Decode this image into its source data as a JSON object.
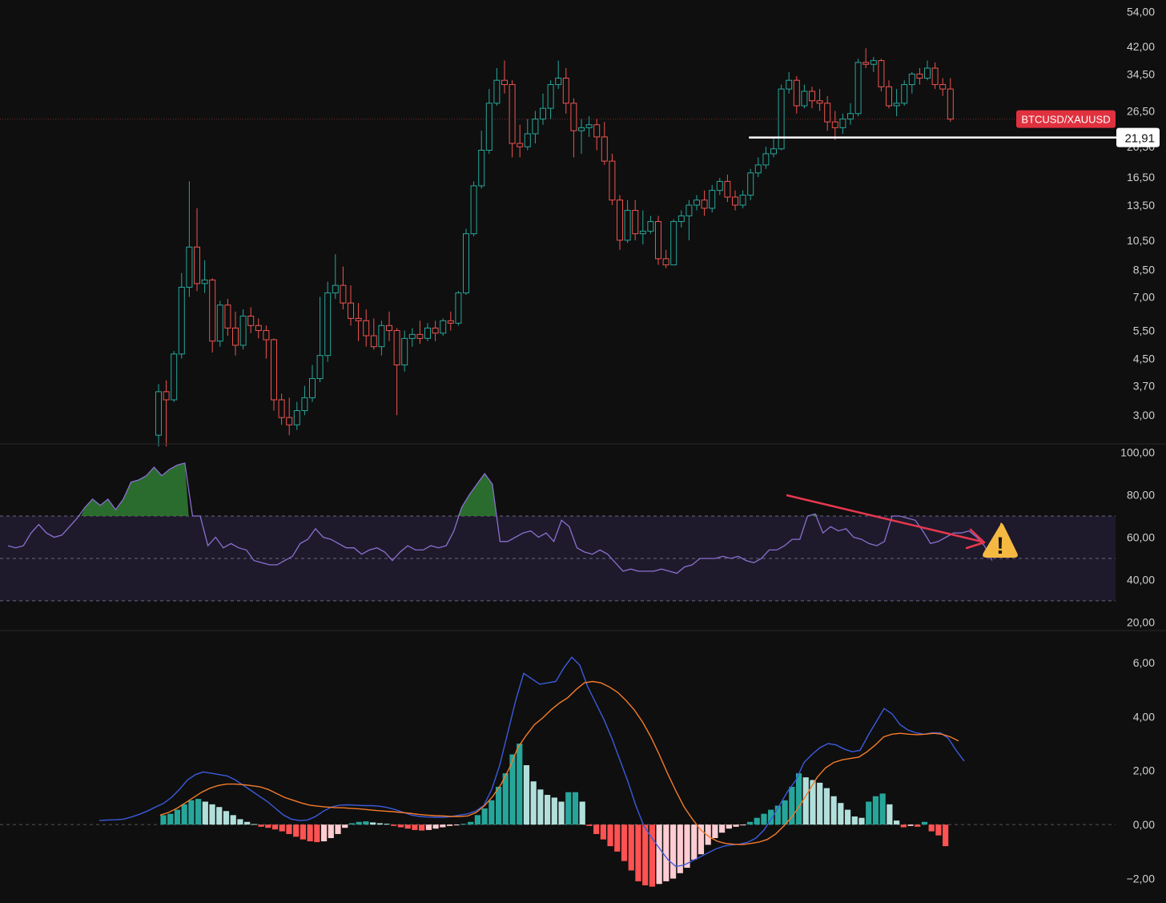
{
  "colors": {
    "background": "#0f0f0f",
    "up": "#26a69a",
    "down": "#ef5350",
    "rsi_line": "#8c6fd1",
    "rsi_band": "#1e1a2b",
    "rsi_ob_fill": "#2f7d32",
    "macd_line": "#3b5bdb",
    "signal_line": "#f57c2a",
    "hist_up_strong": "#26a69a",
    "hist_up_weak": "#b2dfdb",
    "hist_down_strong": "#ff5252",
    "hist_down_weak": "#ffcdd2",
    "price_label_bg": "#e0313f",
    "axis_text": "#cfcfcf",
    "arrow": "#e8384f",
    "warning": "#f5b942"
  },
  "chart_data": [
    {
      "type": "candlestick",
      "symbol": "BTCUSD/XAUUSD",
      "scale": "log",
      "y_ticks": [
        3.0,
        3.7,
        4.5,
        5.5,
        7.0,
        8.5,
        10.5,
        13.5,
        16.5,
        26.5,
        34.5,
        42.0,
        54.0
      ],
      "y_tick_labels": [
        "3,00",
        "3,70",
        "4,50",
        "5,50",
        "7,00",
        "8,50",
        "10,50",
        "13,50",
        "16,50",
        "26,50",
        "34,50",
        "42,00",
        "54,00"
      ],
      "ylim": [
        2.5,
        56
      ],
      "partially_hidden_tick_label": "20,50",
      "last_price_label": "BTCUSD/XAUUSD",
      "horizontal_line": {
        "value": 21.91,
        "label": "21,91",
        "start_bar": 77
      },
      "current_price": 25.0,
      "candles": [
        [
          2.6,
          3.55,
          3.75,
          2.4
        ],
        [
          3.55,
          3.35,
          3.85,
          2.4
        ],
        [
          3.35,
          4.65,
          4.75,
          3.3
        ],
        [
          4.65,
          7.5,
          8.3,
          4.5
        ],
        [
          7.5,
          10.0,
          16.0,
          7.0
        ],
        [
          10.0,
          7.7,
          13.2,
          7.3
        ],
        [
          7.7,
          7.9,
          9.1,
          7.2
        ],
        [
          7.9,
          5.1,
          8.0,
          4.7
        ],
        [
          5.1,
          6.6,
          6.8,
          4.9
        ],
        [
          6.6,
          5.6,
          6.9,
          5.3
        ],
        [
          5.6,
          4.95,
          6.3,
          4.6
        ],
        [
          4.95,
          6.1,
          6.4,
          4.8
        ],
        [
          6.1,
          5.7,
          6.5,
          5.4
        ],
        [
          5.7,
          5.5,
          6.0,
          5.2
        ],
        [
          5.5,
          5.15,
          5.7,
          4.5
        ],
        [
          5.15,
          3.35,
          5.2,
          3.1
        ],
        [
          3.35,
          2.95,
          3.5,
          2.8
        ],
        [
          2.95,
          2.8,
          3.4,
          2.6
        ],
        [
          2.8,
          3.1,
          3.3,
          2.7
        ],
        [
          3.1,
          3.4,
          3.7,
          3.0
        ],
        [
          3.4,
          3.9,
          4.3,
          3.3
        ],
        [
          3.9,
          4.6,
          7.0,
          3.8
        ],
        [
          4.6,
          7.2,
          7.8,
          4.4
        ],
        [
          7.2,
          7.6,
          9.5,
          6.9
        ],
        [
          7.6,
          6.7,
          8.7,
          6.4
        ],
        [
          6.7,
          6.0,
          7.6,
          5.7
        ],
        [
          6.0,
          5.9,
          6.7,
          5.1
        ],
        [
          5.9,
          5.3,
          6.4,
          4.9
        ],
        [
          5.3,
          4.9,
          6.0,
          4.8
        ],
        [
          4.9,
          5.7,
          5.9,
          4.6
        ],
        [
          5.7,
          5.5,
          6.3,
          5.1
        ],
        [
          5.5,
          4.3,
          5.6,
          3.0
        ],
        [
          4.3,
          5.2,
          5.5,
          4.1
        ],
        [
          5.2,
          5.35,
          5.6,
          4.9
        ],
        [
          5.35,
          5.2,
          5.9,
          5.0
        ],
        [
          5.2,
          5.6,
          5.8,
          5.1
        ],
        [
          5.6,
          5.4,
          5.9,
          5.1
        ],
        [
          5.4,
          5.9,
          6.0,
          5.3
        ],
        [
          5.9,
          5.8,
          6.3,
          5.5
        ],
        [
          5.8,
          7.2,
          7.3,
          5.7
        ],
        [
          7.2,
          11.0,
          11.4,
          7.1
        ],
        [
          11.0,
          15.5,
          16.0,
          10.8
        ],
        [
          15.5,
          20.0,
          23.0,
          15.2
        ],
        [
          20.0,
          28.0,
          31.0,
          19.5
        ],
        [
          28.0,
          33.0,
          36.0,
          27.5
        ],
        [
          33.0,
          32.0,
          38.0,
          30.0
        ],
        [
          32.0,
          21.0,
          33.0,
          19.0
        ],
        [
          21.0,
          20.5,
          24.0,
          19.0
        ],
        [
          20.5,
          22.5,
          25.0,
          20.0
        ],
        [
          22.5,
          25.0,
          26.5,
          21.0
        ],
        [
          25.0,
          27.0,
          30.0,
          24.0
        ],
        [
          27.0,
          32.0,
          33.0,
          25.0
        ],
        [
          32.0,
          33.5,
          38.0,
          31.0
        ],
        [
          33.5,
          28.0,
          36.0,
          26.0
        ],
        [
          28.0,
          23.0,
          29.0,
          19.0
        ],
        [
          23.0,
          23.5,
          25.0,
          19.5
        ],
        [
          23.5,
          24.0,
          25.5,
          22.0
        ],
        [
          24.0,
          22.0,
          25.0,
          20.0
        ],
        [
          22.0,
          18.5,
          24.5,
          18.0
        ],
        [
          18.5,
          14.0,
          19.5,
          13.5
        ],
        [
          14.0,
          10.5,
          14.5,
          9.8
        ],
        [
          10.5,
          13.0,
          14.0,
          10.3
        ],
        [
          13.0,
          11.0,
          14.0,
          10.5
        ],
        [
          11.0,
          11.2,
          13.0,
          10.2
        ],
        [
          11.2,
          12.0,
          12.5,
          11.0
        ],
        [
          12.0,
          9.2,
          12.5,
          8.8
        ],
        [
          9.2,
          8.8,
          9.8,
          8.6
        ],
        [
          8.8,
          12.0,
          12.2,
          8.8
        ],
        [
          12.0,
          12.5,
          13.0,
          11.5
        ],
        [
          12.5,
          13.5,
          14.0,
          10.5
        ],
        [
          13.5,
          14.0,
          14.5,
          13.0
        ],
        [
          14.0,
          13.2,
          15.0,
          12.5
        ],
        [
          13.2,
          15.0,
          15.6,
          12.8
        ],
        [
          15.0,
          16.0,
          16.4,
          14.5
        ],
        [
          16.0,
          14.3,
          16.8,
          13.8
        ],
        [
          14.3,
          13.5,
          15.0,
          13.0
        ],
        [
          13.5,
          14.5,
          15.0,
          13.2
        ],
        [
          14.5,
          17.0,
          17.5,
          14.0
        ],
        [
          17.0,
          18.0,
          19.0,
          16.5
        ],
        [
          18.0,
          19.5,
          20.5,
          17.5
        ],
        [
          19.5,
          20.2,
          22.0,
          19.0
        ],
        [
          20.2,
          31.0,
          32.0,
          20.0
        ],
        [
          31.0,
          33.0,
          35.0,
          30.0
        ],
        [
          33.0,
          27.5,
          34.0,
          26.0
        ],
        [
          27.5,
          30.5,
          32.0,
          27.0
        ],
        [
          30.5,
          28.5,
          31.5,
          27.0
        ],
        [
          28.5,
          28.0,
          31.0,
          26.5
        ],
        [
          28.0,
          24.5,
          29.5,
          23.0
        ],
        [
          24.5,
          23.5,
          26.5,
          21.5
        ],
        [
          23.5,
          25.0,
          26.0,
          22.5
        ],
        [
          25.0,
          26.0,
          28.0,
          24.0
        ],
        [
          26.0,
          37.5,
          38.5,
          25.5
        ],
        [
          37.5,
          37.0,
          41.5,
          36.0
        ],
        [
          37.0,
          38.0,
          39.0,
          35.0
        ],
        [
          38.0,
          31.5,
          38.5,
          30.5
        ],
        [
          31.5,
          27.5,
          33.0,
          27.0
        ],
        [
          27.5,
          28.0,
          31.0,
          25.5
        ],
        [
          28.0,
          32.0,
          33.0,
          27.5
        ],
        [
          32.0,
          34.5,
          35.0,
          30.0
        ],
        [
          34.5,
          33.5,
          36.0,
          32.0
        ],
        [
          33.5,
          36.0,
          38.0,
          33.0
        ],
        [
          36.0,
          32.0,
          37.5,
          31.0
        ],
        [
          32.0,
          31.0,
          33.5,
          29.5
        ],
        [
          31.0,
          25.0,
          33.5,
          24.5
        ]
      ]
    },
    {
      "type": "line",
      "indicator": "RSI",
      "y_ticks": [
        20,
        40,
        60,
        80,
        100
      ],
      "y_tick_labels": [
        "20,00",
        "40,00",
        "60,00",
        "80,00",
        "100,00"
      ],
      "ylim": [
        17.5,
        102.5
      ],
      "band": [
        30,
        70
      ],
      "midline": 50,
      "warning_glyph": "!",
      "values": [
        56,
        55,
        56,
        62,
        66,
        62,
        60,
        61,
        65,
        69,
        74,
        78,
        75,
        78,
        73,
        78,
        86,
        87,
        89,
        93,
        89,
        92,
        94,
        95,
        70,
        70,
        56,
        60,
        55,
        57,
        55,
        54,
        49,
        48,
        47,
        47,
        49,
        51,
        57,
        59,
        64,
        60,
        59,
        57,
        55,
        55,
        52,
        54,
        55,
        53,
        49,
        53,
        56,
        54,
        54,
        56,
        55,
        56,
        63,
        74,
        80,
        85,
        90,
        85,
        58,
        58,
        60,
        62,
        63,
        60,
        62,
        58,
        68,
        65,
        55,
        53,
        52,
        54,
        52,
        48,
        44,
        45,
        44,
        44,
        44,
        45,
        44,
        43,
        46,
        47,
        50,
        50,
        50,
        51,
        50,
        51,
        49,
        48,
        50,
        54,
        54,
        56,
        59,
        59,
        70,
        71,
        62,
        65,
        63,
        64,
        60,
        59,
        57,
        56,
        58,
        70,
        70,
        69,
        68,
        63,
        57,
        58,
        60,
        62,
        62,
        63,
        60,
        56,
        49
      ]
    },
    {
      "type": "line",
      "indicator": "MACD",
      "y_ticks": [
        -2,
        0,
        2,
        4,
        6
      ],
      "y_tick_labels": [
        "−2,00",
        "0,00",
        "2,00",
        "4,00",
        "6,00"
      ],
      "ylim": [
        -2.4,
        6.8
      ],
      "zero_line": 0,
      "macd": [
        0.15,
        0.17,
        0.18,
        0.2,
        0.28,
        0.38,
        0.5,
        0.65,
        0.78,
        1.0,
        1.3,
        1.65,
        1.85,
        1.95,
        1.9,
        1.85,
        1.8,
        1.65,
        1.45,
        1.25,
        1.05,
        0.85,
        0.6,
        0.35,
        0.2,
        0.15,
        0.17,
        0.3,
        0.5,
        0.65,
        0.72,
        0.73,
        0.72,
        0.7,
        0.7,
        0.68,
        0.63,
        0.55,
        0.45,
        0.35,
        0.3,
        0.28,
        0.27,
        0.27,
        0.3,
        0.35,
        0.4,
        0.5,
        0.7,
        1.3,
        2.2,
        3.4,
        4.6,
        5.6,
        5.4,
        5.2,
        5.25,
        5.3,
        5.8,
        6.2,
        5.9,
        5.1,
        4.5,
        3.9,
        3.2,
        2.4,
        1.6,
        0.7,
        -0.05,
        -0.5,
        -0.9,
        -1.3,
        -1.55,
        -1.5,
        -1.35,
        -1.2,
        -1.05,
        -0.9,
        -0.8,
        -0.75,
        -0.72,
        -0.65,
        -0.5,
        -0.2,
        0.25,
        0.75,
        1.25,
        1.65,
        2.3,
        2.6,
        2.85,
        3.0,
        2.95,
        2.8,
        2.7,
        2.75,
        3.3,
        3.8,
        4.3,
        4.1,
        3.7,
        3.5,
        3.4,
        3.35,
        3.4,
        3.4,
        3.2,
        2.75,
        2.35
      ],
      "signal": [
        0.35,
        0.45,
        0.6,
        0.8,
        1.0,
        1.2,
        1.35,
        1.45,
        1.5,
        1.5,
        1.48,
        1.44,
        1.4,
        1.3,
        1.15,
        1.0,
        0.9,
        0.8,
        0.72,
        0.68,
        0.65,
        0.63,
        0.62,
        0.6,
        0.58,
        0.55,
        0.52,
        0.5,
        0.48,
        0.45,
        0.42,
        0.38,
        0.35,
        0.33,
        0.32,
        0.3,
        0.3,
        0.32,
        0.45,
        0.7,
        1.05,
        1.5,
        2.1,
        2.85,
        3.3,
        3.7,
        3.95,
        4.25,
        4.5,
        4.7,
        5.0,
        5.25,
        5.3,
        5.25,
        5.1,
        4.9,
        4.6,
        4.25,
        3.8,
        3.25,
        2.6,
        1.9,
        1.25,
        0.65,
        0.2,
        -0.2,
        -0.45,
        -0.62,
        -0.7,
        -0.73,
        -0.74,
        -0.7,
        -0.65,
        -0.55,
        -0.35,
        -0.05,
        0.3,
        0.75,
        1.25,
        1.75,
        2.1,
        2.3,
        2.4,
        2.45,
        2.5,
        2.7,
        2.95,
        3.25,
        3.35,
        3.38,
        3.35,
        3.33,
        3.35,
        3.38,
        3.35,
        3.25,
        3.1
      ],
      "histogram": [
        0.35,
        0.4,
        0.55,
        0.75,
        0.9,
        0.95,
        0.85,
        0.75,
        0.65,
        0.5,
        0.35,
        0.2,
        0.1,
        0.02,
        -0.08,
        -0.12,
        -0.18,
        -0.25,
        -0.35,
        -0.45,
        -0.55,
        -0.62,
        -0.65,
        -0.62,
        -0.5,
        -0.35,
        -0.12,
        0.05,
        0.1,
        0.12,
        0.08,
        0.05,
        0.03,
        -0.05,
        -0.1,
        -0.15,
        -0.2,
        -0.22,
        -0.2,
        -0.15,
        -0.1,
        -0.05,
        -0.02,
        0.03,
        0.1,
        0.35,
        0.6,
        0.9,
        1.4,
        1.9,
        2.6,
        3.0,
        2.2,
        1.6,
        1.3,
        1.1,
        1.0,
        0.85,
        1.2,
        1.2,
        0.85,
        -0.05,
        -0.35,
        -0.55,
        -0.8,
        -1.0,
        -1.35,
        -1.7,
        -2.1,
        -2.25,
        -2.3,
        -2.2,
        -2.1,
        -2.0,
        -1.8,
        -1.6,
        -1.3,
        -1.1,
        -0.75,
        -0.5,
        -0.3,
        -0.15,
        -0.08,
        -0.03,
        0.1,
        0.25,
        0.4,
        0.55,
        0.7,
        0.9,
        1.4,
        1.9,
        1.75,
        1.65,
        1.55,
        1.35,
        1.05,
        0.8,
        0.55,
        0.3,
        0.25,
        0.85,
        1.05,
        1.15,
        0.75,
        0.15,
        -0.1,
        -0.05,
        -0.08,
        0.1,
        -0.25,
        -0.4,
        -0.8
      ]
    }
  ]
}
